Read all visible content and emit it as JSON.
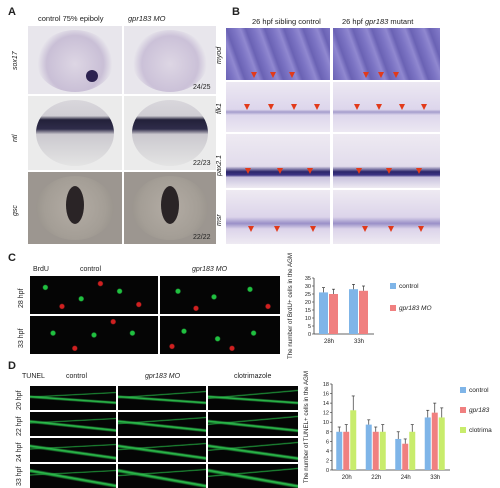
{
  "panels": {
    "A": {
      "label": "A",
      "col1": "control 75% epiboly",
      "col2": "gpr183 MO",
      "rows": [
        {
          "gene": "sox17",
          "score": "24/25"
        },
        {
          "gene": "ntl",
          "score": "22/23"
        },
        {
          "gene": "gsc",
          "score": "22/22"
        }
      ]
    },
    "B": {
      "label": "B",
      "col1": "26 hpf sibling control",
      "col2_prefix": "26 hpf",
      "col2_gene": "gpr183",
      "col2_suffix": "mutant",
      "rows": [
        "myod",
        "flk1",
        "pax2.1",
        "msr"
      ]
    },
    "C": {
      "label": "C",
      "stain": "BrdU",
      "col1": "control",
      "col2": "gpr183 MO",
      "rows": [
        "28 hpf",
        "33 hpf"
      ]
    },
    "D": {
      "label": "D",
      "stain": "TUNEL",
      "col1": "control",
      "col2": "gpr183 MO",
      "col3": "clotrimazole",
      "rows": [
        "20 hpf",
        "22 hpf",
        "24 hpf",
        "33 hpf"
      ]
    }
  },
  "colors": {
    "control": "#7fb5e8",
    "gpr183": "#f08080",
    "clotrimazole": "#c8ec6c"
  },
  "chart_data": [
    {
      "type": "bar",
      "ylabel": "The number of BrdU+ cells in the AGM",
      "categories": [
        "28h",
        "33h"
      ],
      "ylim": [
        0,
        35
      ],
      "yticks": [
        "0",
        "5",
        "10",
        "15",
        "20",
        "25",
        "30",
        "35"
      ],
      "series": [
        {
          "name": "control",
          "values": [
            26,
            28
          ],
          "errors": [
            3,
            3
          ]
        },
        {
          "name": "gpr183 MO",
          "values": [
            25,
            27
          ],
          "errors": [
            3,
            3
          ]
        }
      ],
      "legend": "right"
    },
    {
      "type": "bar",
      "ylabel": "The number of TUNEL+ cells in the AGM",
      "categories": [
        "20h",
        "22h",
        "24h",
        "33h"
      ],
      "ylim": [
        0,
        18
      ],
      "yticks": [
        "0",
        "2",
        "4",
        "6",
        "8",
        "10",
        "12",
        "14",
        "16",
        "18"
      ],
      "series": [
        {
          "name": "control",
          "values": [
            8,
            9.5,
            6.5,
            11
          ],
          "errors": [
            1,
            1,
            1.5,
            1.5
          ]
        },
        {
          "name": "gpr183",
          "values": [
            8,
            8,
            5.5,
            12
          ],
          "errors": [
            1.5,
            1,
            1,
            2
          ]
        },
        {
          "name": "clotrima",
          "values": [
            12.5,
            8,
            8,
            11
          ],
          "errors": [
            3,
            1.5,
            1.5,
            2
          ]
        }
      ],
      "legend": "right"
    }
  ]
}
